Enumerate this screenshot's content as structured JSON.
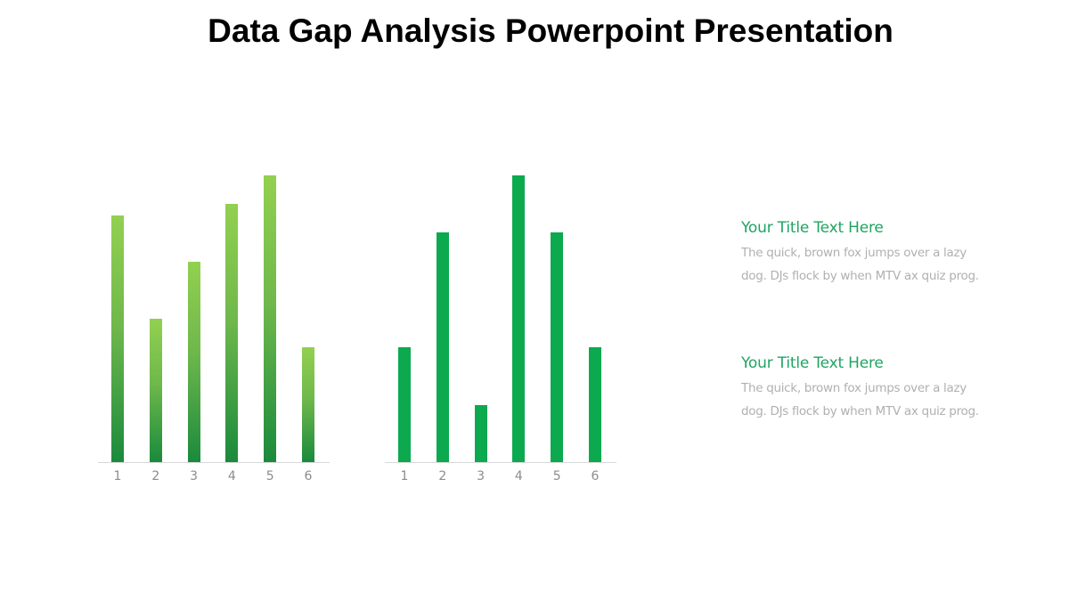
{
  "slide": {
    "title": "Data Gap Analysis Powerpoint Presentation"
  },
  "colors": {
    "left_bar_gradient_top": "#92D050",
    "left_bar_gradient_bottom": "#1A8A3C",
    "right_bar": "#0CA94F",
    "title_text_green": "#1FA463",
    "body_text_gray": "#B0B0B0",
    "axis_line": "#D9D9D9"
  },
  "chart_data": [
    {
      "type": "bar",
      "title": "",
      "xlabel": "",
      "ylabel": "",
      "categories": [
        "1",
        "2",
        "3",
        "4",
        "5",
        "6"
      ],
      "values": [
        86,
        50,
        70,
        90,
        100,
        40
      ],
      "ylim": [
        0,
        100
      ],
      "grid": false,
      "legend": null,
      "style": "vertical gradient green bars"
    },
    {
      "type": "bar",
      "title": "",
      "xlabel": "",
      "ylabel": "",
      "categories": [
        "1",
        "2",
        "3",
        "4",
        "5",
        "6"
      ],
      "values": [
        40,
        80,
        20,
        100,
        80,
        40
      ],
      "ylim": [
        0,
        100
      ],
      "grid": false,
      "legend": null,
      "style": "solid green bars"
    }
  ],
  "text_blocks": [
    {
      "title": "Your Title Text Here",
      "body": "The quick, brown fox jumps over a lazy dog. DJs flock by when MTV ax quiz prog."
    },
    {
      "title": "Your Title Text Here",
      "body": "The quick, brown fox jumps over a lazy dog. DJs flock by when MTV ax quiz prog."
    }
  ]
}
